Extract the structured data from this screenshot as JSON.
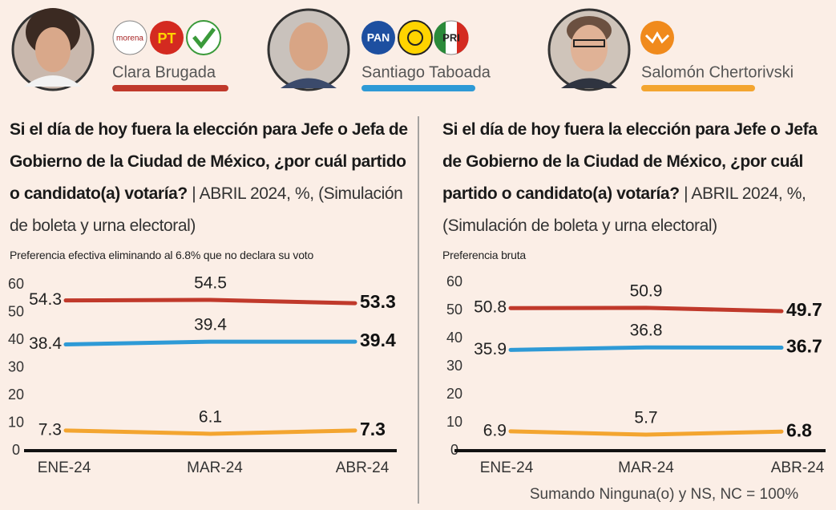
{
  "header": {
    "parties": [
      [
        "morena",
        "PT"
      ],
      [
        "PAN",
        "PRI"
      ]
    ]
  },
  "chart_data": [
    {
      "type": "line",
      "title": "Si el día de hoy fuera la elección para Jefe o Jefa de Gobierno de la Ciudad de México, ¿por cuál partido o candidato(a) votaría?",
      "subtitle": "| ABRIL 2024, %, (Simulación de boleta y urna electoral)",
      "axis_note": "Preferencia efectiva eliminando al 6.8% que no declara su voto",
      "categories": [
        "ENE-24",
        "MAR-24",
        "ABR-24"
      ],
      "series": [
        {
          "name": "Clara Brugada",
          "color": "#c0392b",
          "values": [
            54.3,
            54.5,
            53.3
          ]
        },
        {
          "name": "Santiago Taboada",
          "color": "#2e9ad6",
          "values": [
            38.4,
            39.4,
            39.4
          ]
        },
        {
          "name": "Salomón Chertorivski",
          "color": "#f3a530",
          "values": [
            7.3,
            6.1,
            7.3
          ]
        }
      ],
      "ylim": [
        0,
        60
      ],
      "yticks": [
        0,
        10,
        20,
        30,
        40,
        50,
        60
      ],
      "grid": false
    },
    {
      "type": "line",
      "title": "Si el día de hoy fuera la elección para Jefe o Jefa de Gobierno de la Ciudad de México, ¿por cuál partido o candidato(a) votaría?",
      "subtitle": "| ABRIL 2024, %, (Simulación de boleta y urna electoral)",
      "axis_note": "Preferencia bruta",
      "footnote": "Sumando Ninguna(o) y NS, NC = 100%",
      "categories": [
        "ENE-24",
        "MAR-24",
        "ABR-24"
      ],
      "series": [
        {
          "color": "#c0392b",
          "values": [
            50.8,
            50.9,
            49.7
          ]
        },
        {
          "color": "#2e9ad6",
          "values": [
            35.9,
            36.8,
            36.7
          ]
        },
        {
          "color": "#f3a530",
          "values": [
            6.9,
            5.7,
            6.8
          ]
        }
      ],
      "ylim": [
        0,
        60
      ],
      "yticks": [
        0,
        10,
        20,
        30,
        40,
        50,
        60
      ],
      "grid": false
    }
  ]
}
